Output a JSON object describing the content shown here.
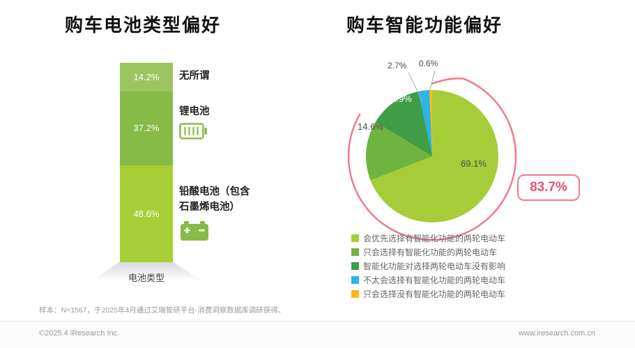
{
  "chart_data": [
    {
      "type": "bar",
      "subtype": "stacked_column",
      "title": "购车电池类型偏好",
      "xlabel": "电池类型",
      "categories": [
        "电池类型"
      ],
      "unit": "%",
      "ylim": [
        0,
        100
      ],
      "series": [
        {
          "name": "无所谓",
          "value": 14.2,
          "display": "14.2%",
          "color": "#9dc55f",
          "icon": null
        },
        {
          "name": "锂电池",
          "value": 37.2,
          "display": "37.2%",
          "color": "#86bb47",
          "icon": "lithium-battery-icon"
        },
        {
          "name": "铅酸电池（包含石墨烯电池）",
          "value": 48.6,
          "display": "48.6%",
          "color": "#a7ce36",
          "icon": "lead-acid-battery-icon"
        }
      ]
    },
    {
      "type": "pie",
      "title": "购车智能功能偏好",
      "legend_position": "bottom",
      "annotation": {
        "display": "83.7%",
        "covers_values": [
          69.1,
          14.6
        ]
      },
      "slices": [
        {
          "label": "会优先选择有智能化功能的两轮电动车",
          "value": 69.1,
          "display": "69.1%",
          "color": "#a6cd39"
        },
        {
          "label": "只会选择有智能化功能的两轮电动车",
          "value": 14.6,
          "display": "14.6%",
          "color": "#6fb440"
        },
        {
          "label": "智能化功能对选择两轮电动车没有影响",
          "value": 12.9,
          "display": "12.9%",
          "color": "#3f9e47"
        },
        {
          "label": "不太会选择有智能化功能的两轮电动车",
          "value": 2.7,
          "display": "2.7%",
          "color": "#29b5e8"
        },
        {
          "label": "只会选择没有智能化功能的两轮电动车",
          "value": 0.6,
          "display": "0.6%",
          "color": "#fdb913"
        }
      ]
    }
  ],
  "accent": {
    "arc_pink": "#f0798d",
    "badge_text": "#e05571",
    "leader_line": "#aaaaaa"
  },
  "footer": {
    "footnote": "样本：N=1567，于2025年4月通过艾瑞智研平台-消费洞察数据库调研获得。",
    "copyright": "©2025.4 iResearch Inc.",
    "website": "www.iresearch.com.cn"
  }
}
